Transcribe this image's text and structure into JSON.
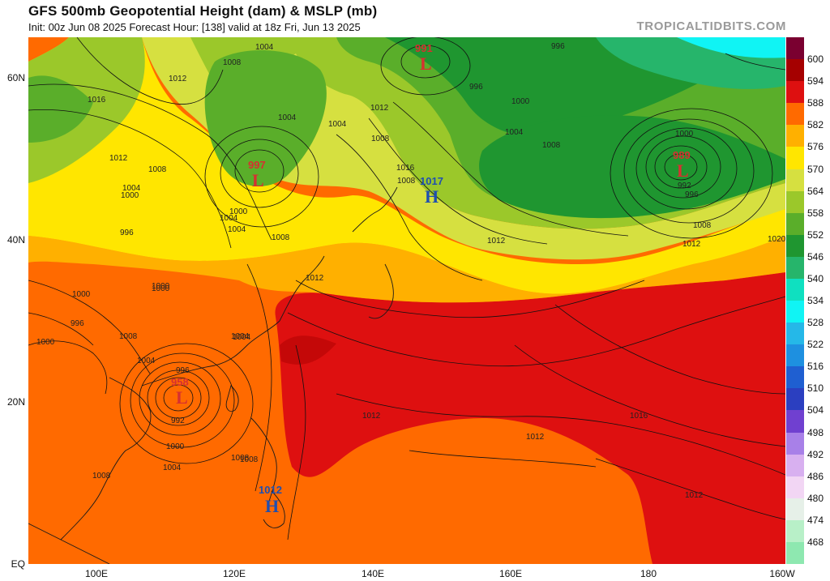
{
  "header": {
    "title": "GFS 500mb Geopotential Height (dam) & MSLP (mb)",
    "subtitle": "Init: 00z Jun 08 2025   Forecast Hour: [138]   valid at 18z Fri, Jun 13 2025",
    "source": "TROPICALTIDBITS.COM"
  },
  "axes": {
    "y_ticks": [
      "60N",
      "40N",
      "20N",
      "EQ"
    ],
    "x_ticks": [
      "100E",
      "120E",
      "140E",
      "160E",
      "180",
      "160W"
    ]
  },
  "colorbar": {
    "labels": [
      "600",
      "594",
      "588",
      "582",
      "576",
      "570",
      "564",
      "558",
      "552",
      "546",
      "540",
      "534",
      "528",
      "522",
      "516",
      "510",
      "504",
      "498",
      "492",
      "486",
      "480",
      "474",
      "468"
    ],
    "colors": [
      "#7a0030",
      "#a50000",
      "#de1010",
      "#ff6a00",
      "#ffb000",
      "#ffe600",
      "#d6e040",
      "#9bc82a",
      "#5aae2a",
      "#1f9630",
      "#26b56b",
      "#0fe0c0",
      "#10f4f4",
      "#25b8e8",
      "#1e90e0",
      "#1f5fd1",
      "#2b3fc0",
      "#7040d0",
      "#a880e8",
      "#d8b0f0",
      "#f2d6f4",
      "#e6f0e8",
      "#b8f0c8",
      "#8ee8b0"
    ]
  },
  "pressure_systems": [
    {
      "value": "991",
      "type": "L",
      "color": "#d63030"
    },
    {
      "value": "997",
      "type": "L",
      "color": "#d63030"
    },
    {
      "value": "989",
      "type": "L",
      "color": "#d63030"
    },
    {
      "value": "1017",
      "type": "H",
      "color": "#1f4fb0"
    },
    {
      "value": "1012",
      "type": "H",
      "color": "#1f4fb0"
    },
    {
      "value": "958",
      "type": "L",
      "color": "#d63030"
    }
  ],
  "isobar_labels": [
    "1004",
    "1008",
    "1012",
    "1016",
    "1012",
    "1008",
    "1004",
    "1000",
    "1004",
    "1008",
    "1004",
    "996",
    "1000",
    "1000",
    "996",
    "1008",
    "1004",
    "1004",
    "1008",
    "1004",
    "1008",
    "1000",
    "992",
    "996",
    "1008",
    "1012",
    "1012",
    "1020",
    "1000",
    "996",
    "1000",
    "1000",
    "1004",
    "1008",
    "1012",
    "1004",
    "996",
    "992",
    "1000",
    "1008",
    "1004",
    "1008",
    "1012",
    "1012",
    "1016",
    "1012",
    "1012",
    "996",
    "1000",
    "1004",
    "1008",
    "1016"
  ]
}
